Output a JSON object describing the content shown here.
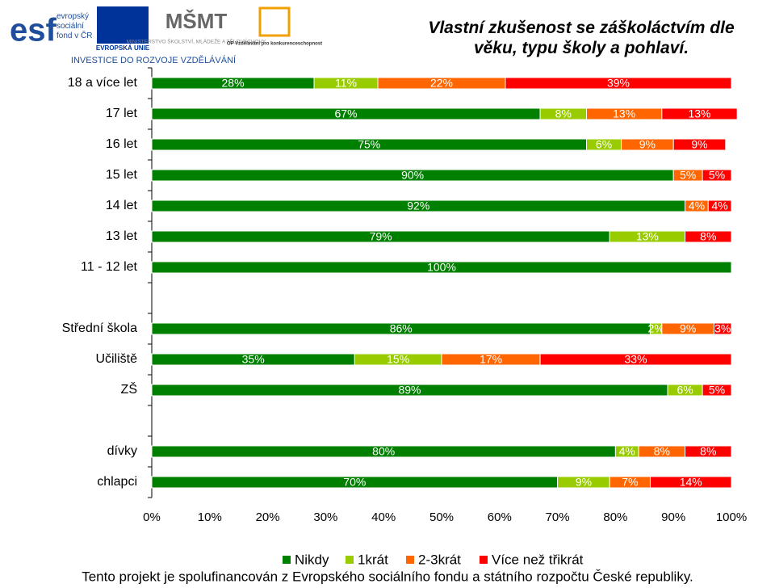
{
  "logos": {
    "esf": "evropský sociální fond v ČR",
    "eu": "EVROPSKÁ UNIE",
    "msmt": "MINISTERSTVO ŠKOLSTVÍ, MLÁDEŽE A TĚLOVÝCHOVY",
    "op": "OP Vzdělávání pro konkurenceschopnost",
    "tagline": "INVESTICE DO ROZVOJE VZDĚLÁVÁNÍ"
  },
  "chart_data": {
    "type": "stacked-bar-horizontal",
    "title": "Vlastní zkušenost se záškoláctvím dle věku, typu školy a pohlaví.",
    "categories": [
      "18 a více let",
      "17 let",
      "16 let",
      "15 let",
      "14 let",
      "13 let",
      "11 - 12 let",
      null,
      "Střední škola",
      "Učiliště",
      "ZŠ",
      null,
      "dívky",
      "chlapci"
    ],
    "series": [
      {
        "name": "Nikdy",
        "color": "#008000",
        "values": [
          28,
          67,
          75,
          90,
          92,
          79,
          100,
          null,
          86,
          35,
          89,
          null,
          80,
          70
        ],
        "value_labels": [
          "28%",
          "67%",
          "75%",
          "90%",
          "92%",
          "79%",
          "100%",
          null,
          "86%",
          "35%",
          "89%",
          null,
          "80%",
          "70%"
        ]
      },
      {
        "name": "1krát",
        "color": "#99cc00",
        "values": [
          11,
          8,
          6,
          null,
          null,
          13,
          null,
          null,
          2,
          15,
          6,
          null,
          4,
          9
        ],
        "value_labels": [
          "11%",
          "8%",
          "6%",
          null,
          null,
          "13%",
          null,
          null,
          "2%",
          "15%",
          "6%",
          null,
          "4%",
          "9%"
        ]
      },
      {
        "name": "2-3krát",
        "color": "#ff6600",
        "values": [
          22,
          13,
          9,
          5,
          4,
          null,
          null,
          null,
          9,
          17,
          null,
          null,
          8,
          7
        ],
        "value_labels": [
          "22%",
          "13%",
          "9%",
          "5%",
          "4%",
          null,
          null,
          null,
          "9%",
          "17%",
          null,
          null,
          "8%",
          "7%"
        ]
      },
      {
        "name": "Více než třikrát",
        "color": "#ff0000",
        "values": [
          39,
          13,
          9,
          5,
          4,
          8,
          null,
          null,
          3,
          33,
          5,
          null,
          8,
          14
        ],
        "value_labels": [
          "39%",
          "13%",
          "9%",
          "5%",
          "4%",
          "8%",
          null,
          null,
          "3%",
          "33%",
          "5%",
          null,
          "8%",
          "14%"
        ]
      }
    ],
    "xlim": [
      0,
      100
    ],
    "xticks": [
      {
        "value": 0,
        "label": "0%"
      },
      {
        "value": 10,
        "label": "10%"
      },
      {
        "value": 20,
        "label": "20%"
      },
      {
        "value": 30,
        "label": "30%"
      },
      {
        "value": 40,
        "label": "40%"
      },
      {
        "value": 50,
        "label": "50%"
      },
      {
        "value": 60,
        "label": "60%"
      },
      {
        "value": 70,
        "label": "70%"
      },
      {
        "value": 80,
        "label": "80%"
      },
      {
        "value": 90,
        "label": "90%"
      },
      {
        "value": 100,
        "label": "100%"
      }
    ],
    "legend": "bottom"
  },
  "footer": "Tento projekt je spolufinancován z Evropského sociálního fondu a státního rozpočtu České republiky."
}
